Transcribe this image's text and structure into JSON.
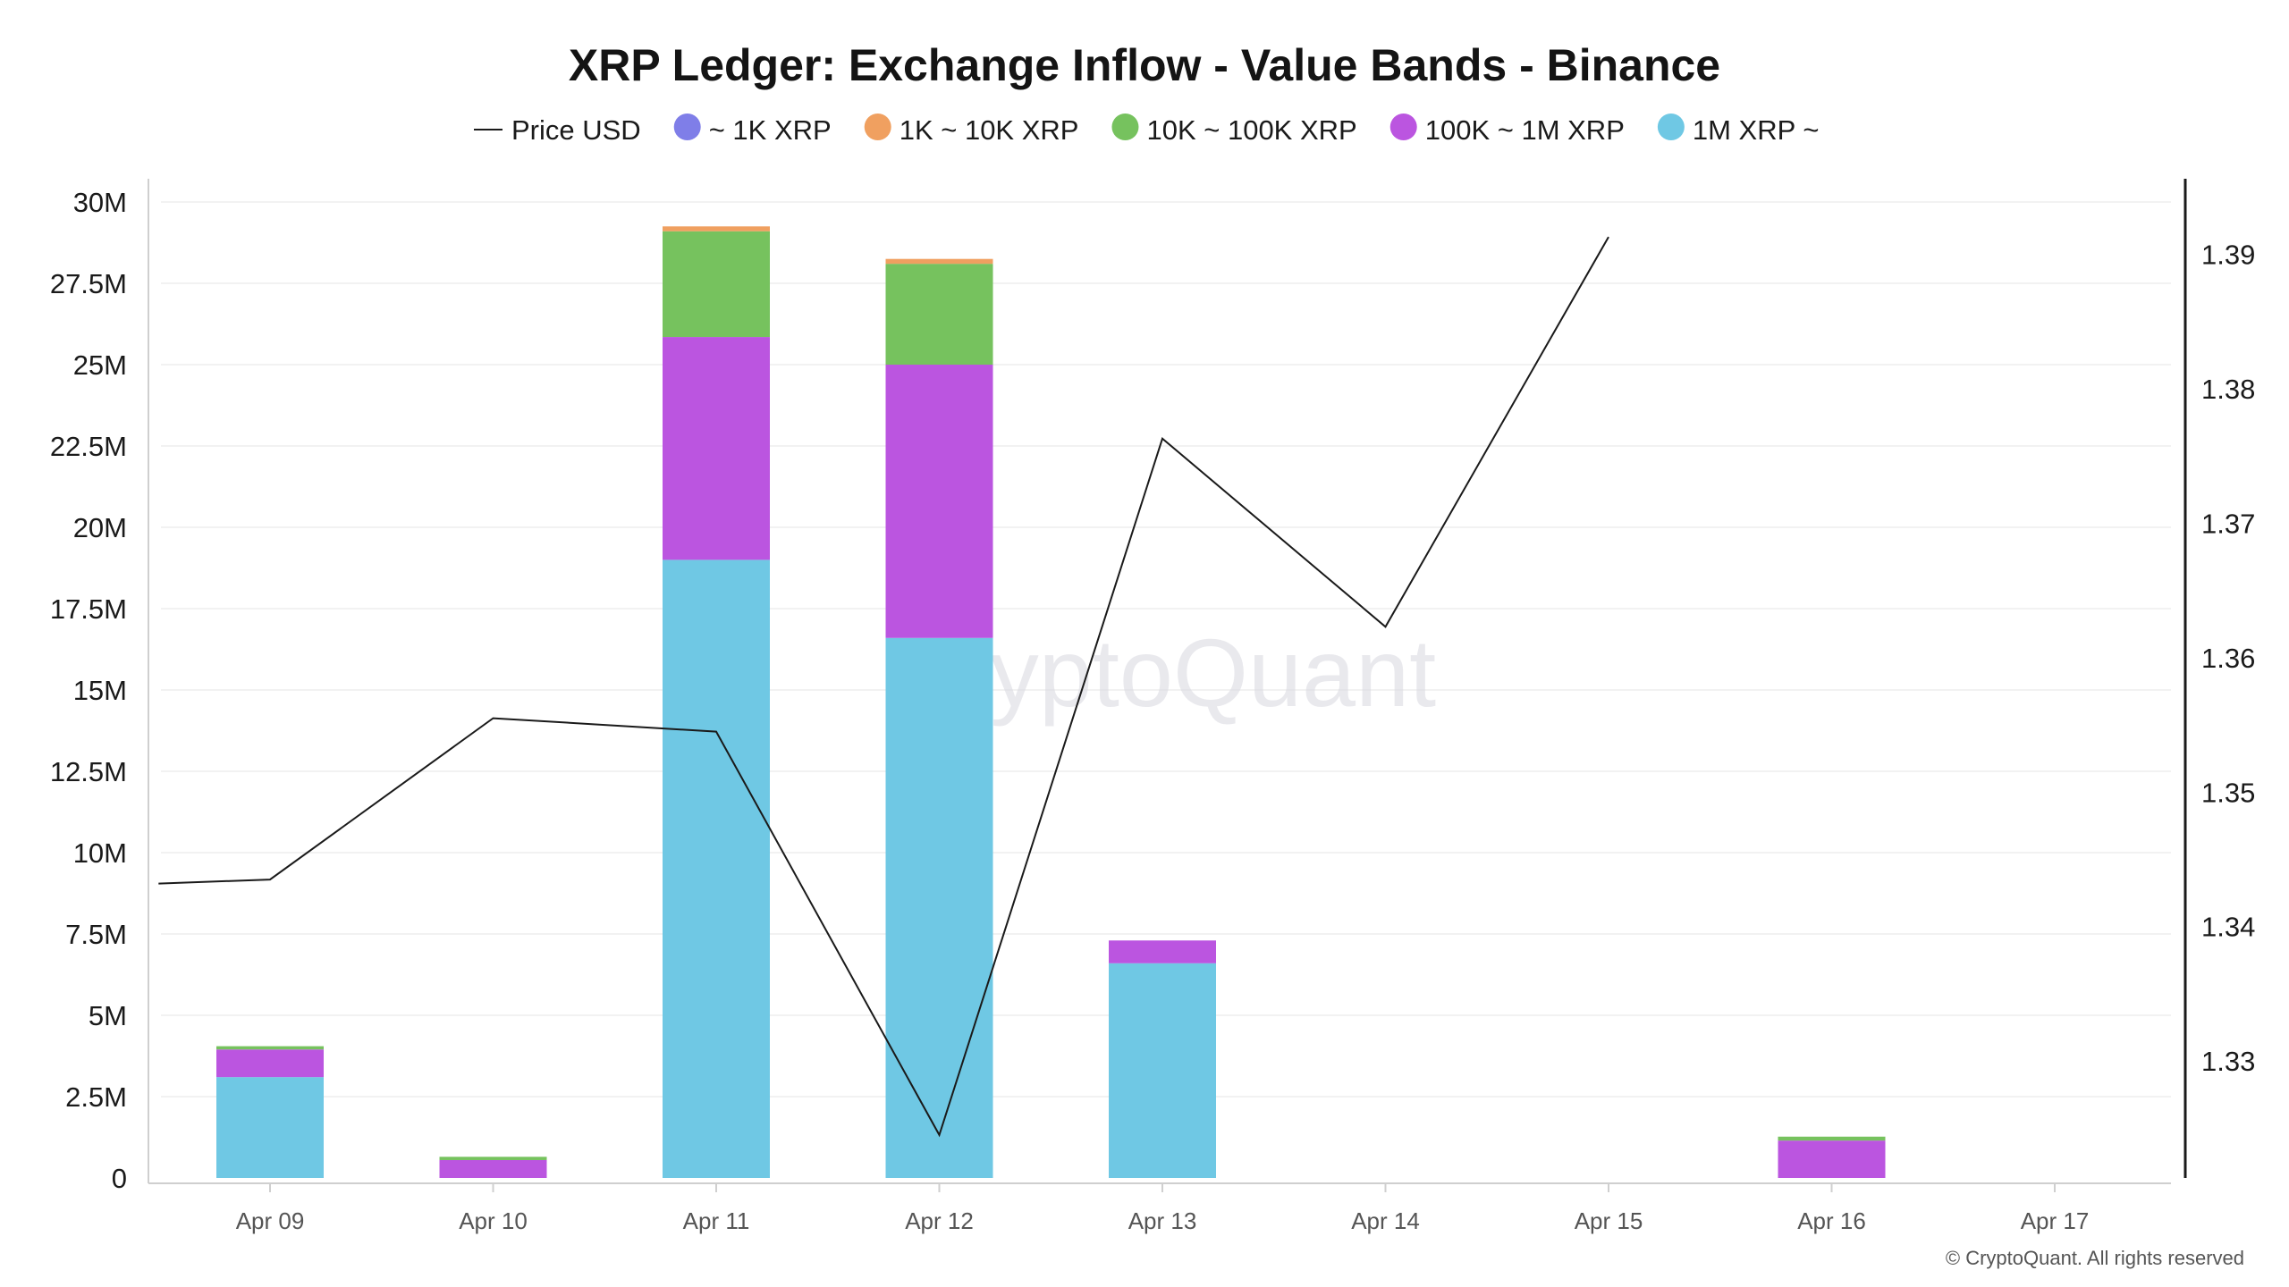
{
  "chart_data": {
    "type": "bar",
    "stacked": true,
    "title": "XRP Ledger: Exchange Inflow - Value Bands - Binance",
    "watermark": "CryptoQuant",
    "copyright": "© CryptoQuant. All rights reserved",
    "categories": [
      "Apr 09",
      "Apr 10",
      "Apr 11",
      "Apr 12",
      "Apr 13",
      "Apr 14",
      "Apr 15",
      "Apr 16",
      "Apr 17"
    ],
    "legend_position": "top",
    "grid": true,
    "y_left": {
      "ylim": [
        0,
        30000000
      ],
      "ticks": [
        {
          "v": 0,
          "label": "0"
        },
        {
          "v": 2500000,
          "label": "2.5M"
        },
        {
          "v": 5000000,
          "label": "5M"
        },
        {
          "v": 7500000,
          "label": "7.5M"
        },
        {
          "v": 10000000,
          "label": "10M"
        },
        {
          "v": 12500000,
          "label": "12.5M"
        },
        {
          "v": 15000000,
          "label": "15M"
        },
        {
          "v": 17500000,
          "label": "17.5M"
        },
        {
          "v": 20000000,
          "label": "20M"
        },
        {
          "v": 22500000,
          "label": "22.5M"
        },
        {
          "v": 25000000,
          "label": "25M"
        },
        {
          "v": 27500000,
          "label": "27.5M"
        },
        {
          "v": 30000000,
          "label": "30M"
        }
      ]
    },
    "y_right": {
      "ylim": [
        1.3213,
        1.3939
      ],
      "ticks": [
        {
          "v": 1.33,
          "label": "1.33"
        },
        {
          "v": 1.34,
          "label": "1.34"
        },
        {
          "v": 1.35,
          "label": "1.35"
        },
        {
          "v": 1.36,
          "label": "1.36"
        },
        {
          "v": 1.37,
          "label": "1.37"
        },
        {
          "v": 1.38,
          "label": "1.38"
        },
        {
          "v": 1.39,
          "label": "1.39"
        }
      ]
    },
    "series": [
      {
        "name": "1M XRP ~",
        "color": "#6fc8e4",
        "values": [
          3100000,
          0,
          19000000,
          16600000,
          6600000,
          0,
          0,
          0,
          0
        ]
      },
      {
        "name": "100K ~ 1M XRP",
        "color": "#bb55e0",
        "values": [
          850000,
          550000,
          6850000,
          8400000,
          700000,
          0,
          0,
          1150000,
          0
        ]
      },
      {
        "name": "10K ~ 100K XRP",
        "color": "#76c25e",
        "values": [
          100000,
          100000,
          3250000,
          3100000,
          0,
          0,
          0,
          120000,
          0
        ]
      },
      {
        "name": "1K ~ 10K XRP",
        "color": "#f0a060",
        "values": [
          0,
          0,
          150000,
          150000,
          0,
          0,
          0,
          0,
          0
        ]
      },
      {
        "name": "~ 1K XRP",
        "color": "#7f7ee8",
        "values": [
          0,
          0,
          0,
          0,
          0,
          0,
          0,
          0,
          0
        ]
      }
    ],
    "price_series": {
      "name": "Price USD",
      "color": "#1a1a1a",
      "points": [
        {
          "x": "Apr 08.5",
          "xpos": -0.5,
          "y": 1.3432
        },
        {
          "x": "Apr 09",
          "xpos": 0,
          "y": 1.3435
        },
        {
          "x": "Apr 10",
          "xpos": 1,
          "y": 1.3555
        },
        {
          "x": "Apr 11",
          "xpos": 2,
          "y": 1.3545
        },
        {
          "x": "Apr 12",
          "xpos": 3,
          "y": 1.3245
        },
        {
          "x": "Apr 13",
          "xpos": 4,
          "y": 1.3763
        },
        {
          "x": "Apr 14",
          "xpos": 5,
          "y": 1.3623
        },
        {
          "x": "Apr 15",
          "xpos": 6,
          "y": 1.3913
        }
      ]
    },
    "legend": [
      {
        "label": "Price USD",
        "type": "line",
        "color": "#1a1a1a"
      },
      {
        "label": "~ 1K XRP",
        "type": "dot",
        "color": "#7f7ee8"
      },
      {
        "label": "1K ~ 10K XRP",
        "type": "dot",
        "color": "#f0a060"
      },
      {
        "label": "10K ~ 100K XRP",
        "type": "dot",
        "color": "#76c25e"
      },
      {
        "label": "100K ~ 1M XRP",
        "type": "dot",
        "color": "#bb55e0"
      },
      {
        "label": "1M XRP ~",
        "type": "dot",
        "color": "#6fc8e4"
      }
    ]
  }
}
